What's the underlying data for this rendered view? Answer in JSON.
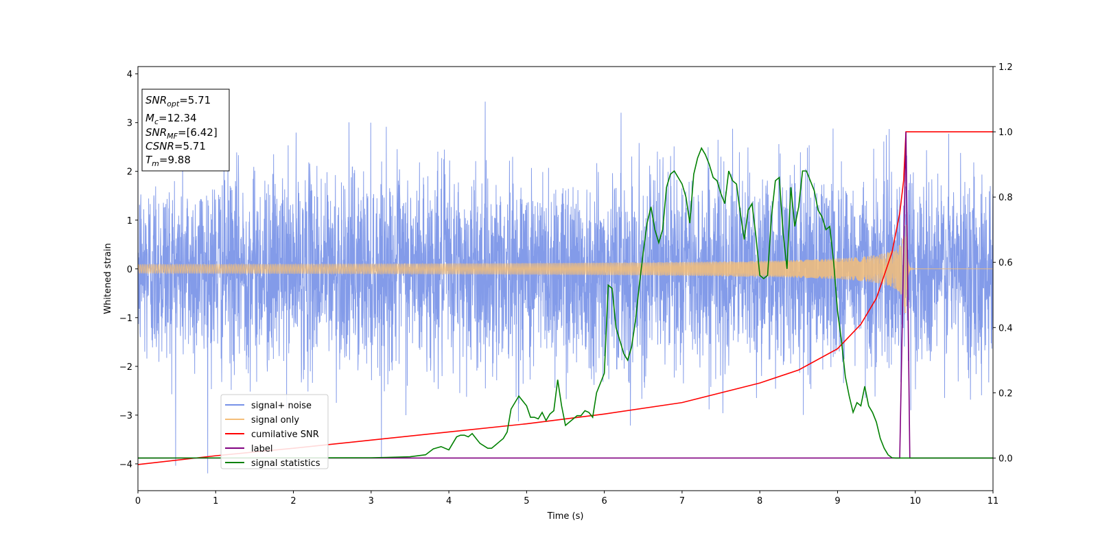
{
  "chart_data": {
    "type": "line",
    "xlabel": "Time (s)",
    "ylabel": "Whitened strain",
    "xlim": [
      0,
      11
    ],
    "ylim_left": [
      -4.55,
      4.15
    ],
    "ylim_right": [
      -0.1,
      1.2
    ],
    "x_ticks": [
      "0",
      "1",
      "2",
      "3",
      "4",
      "5",
      "6",
      "7",
      "8",
      "9",
      "10",
      "11"
    ],
    "y_ticks_left": [
      "4",
      "3",
      "2",
      "1",
      "0",
      "−1",
      "−2",
      "−3",
      "−4"
    ],
    "y_ticks_right": [
      "1.2",
      "1.0",
      "0.8",
      "0.6",
      "0.4",
      "0.2",
      "0.0"
    ],
    "info_box": {
      "lines": [
        {
          "sym": "SNR",
          "sub": "opt",
          "val": "=5.71"
        },
        {
          "sym": "M",
          "sub": "c",
          "val": "=12.34"
        },
        {
          "sym": "SNR",
          "sub": "MF",
          "val": "=[6.42]"
        },
        {
          "sym": "CSNR",
          "sub": "",
          "val": "=5.71"
        },
        {
          "sym": "T",
          "sub": "m",
          "val": "=9.88"
        }
      ]
    },
    "legend": {
      "placement": "lower-left",
      "entries": [
        "signal+ noise",
        "signal only",
        "cumilative SNR",
        "label",
        "signal statistics"
      ]
    },
    "series": [
      {
        "name": "signal+ noise",
        "axis": "left",
        "color": "#7590e7",
        "description_values": {
          "noise_std": 1.0,
          "duration": 11,
          "sample_rate": 400
        }
      },
      {
        "name": "signal only",
        "axis": "left",
        "color": "#f5be78",
        "chirp": {
          "merge_time": 9.88,
          "peak_amplitude": 0.9
        }
      },
      {
        "name": "cumilative SNR",
        "axis": "right",
        "color": "#ff0000",
        "x": [
          0,
          1,
          2,
          3,
          4,
          5,
          6,
          7,
          8,
          8.5,
          9,
          9.3,
          9.5,
          9.7,
          9.8,
          9.85,
          9.88,
          10,
          11
        ],
        "y": [
          -0.02,
          0.007,
          0.03,
          0.055,
          0.08,
          0.105,
          0.135,
          0.17,
          0.23,
          0.27,
          0.335,
          0.41,
          0.49,
          0.63,
          0.75,
          0.85,
          1.0,
          1.0,
          1.0
        ]
      },
      {
        "name": "label",
        "axis": "right",
        "color": "#800080",
        "x": [
          0,
          9.8,
          9.88,
          9.93,
          11
        ],
        "y": [
          0,
          0,
          1,
          0,
          0
        ]
      },
      {
        "name": "signal statistics",
        "axis": "right",
        "color": "#008000",
        "x": [
          0,
          3.0,
          3.2,
          3.5,
          3.7,
          3.8,
          3.9,
          4.0,
          4.1,
          4.15,
          4.2,
          4.25,
          4.3,
          4.4,
          4.5,
          4.55,
          4.6,
          4.65,
          4.7,
          4.75,
          4.8,
          4.9,
          5.0,
          5.05,
          5.1,
          5.15,
          5.2,
          5.25,
          5.3,
          5.35,
          5.4,
          5.45,
          5.5,
          5.55,
          5.6,
          5.65,
          5.7,
          5.75,
          5.8,
          5.85,
          5.9,
          5.95,
          6.0,
          6.05,
          6.1,
          6.15,
          6.2,
          6.25,
          6.3,
          6.35,
          6.4,
          6.45,
          6.5,
          6.55,
          6.6,
          6.65,
          6.7,
          6.75,
          6.8,
          6.85,
          6.9,
          6.95,
          7.0,
          7.05,
          7.1,
          7.15,
          7.2,
          7.25,
          7.3,
          7.35,
          7.4,
          7.45,
          7.5,
          7.55,
          7.6,
          7.65,
          7.7,
          7.75,
          7.8,
          7.85,
          7.9,
          7.95,
          8.0,
          8.05,
          8.1,
          8.15,
          8.2,
          8.25,
          8.3,
          8.35,
          8.4,
          8.45,
          8.5,
          8.55,
          8.6,
          8.65,
          8.7,
          8.75,
          8.8,
          8.85,
          8.9,
          8.95,
          9.0,
          9.05,
          9.1,
          9.15,
          9.2,
          9.25,
          9.3,
          9.35,
          9.4,
          9.45,
          9.5,
          9.55,
          9.6,
          9.65,
          9.7,
          9.75,
          9.8,
          9.85,
          9.9,
          9.95,
          10.0,
          10.05,
          10.1,
          11
        ],
        "y": [
          0,
          0.001,
          0.002,
          0.004,
          0.01,
          0.028,
          0.035,
          0.025,
          0.065,
          0.07,
          0.07,
          0.065,
          0.075,
          0.045,
          0.03,
          0.03,
          0.04,
          0.05,
          0.06,
          0.08,
          0.15,
          0.19,
          0.16,
          0.125,
          0.125,
          0.12,
          0.14,
          0.115,
          0.135,
          0.145,
          0.24,
          0.16,
          0.1,
          0.11,
          0.12,
          0.13,
          0.13,
          0.145,
          0.14,
          0.125,
          0.2,
          0.23,
          0.26,
          0.53,
          0.52,
          0.4,
          0.36,
          0.32,
          0.3,
          0.34,
          0.42,
          0.53,
          0.63,
          0.72,
          0.77,
          0.7,
          0.66,
          0.7,
          0.83,
          0.87,
          0.88,
          0.86,
          0.84,
          0.8,
          0.72,
          0.87,
          0.92,
          0.95,
          0.93,
          0.9,
          0.86,
          0.85,
          0.81,
          0.78,
          0.88,
          0.85,
          0.84,
          0.75,
          0.67,
          0.76,
          0.78,
          0.68,
          0.56,
          0.55,
          0.56,
          0.74,
          0.85,
          0.86,
          0.69,
          0.58,
          0.83,
          0.71,
          0.77,
          0.88,
          0.88,
          0.85,
          0.82,
          0.76,
          0.74,
          0.7,
          0.71,
          0.6,
          0.45,
          0.36,
          0.25,
          0.19,
          0.14,
          0.17,
          0.16,
          0.22,
          0.16,
          0.14,
          0.11,
          0.06,
          0.03,
          0.01,
          0.001,
          0,
          0,
          0,
          0,
          0,
          0,
          0,
          0,
          0
        ]
      }
    ]
  }
}
